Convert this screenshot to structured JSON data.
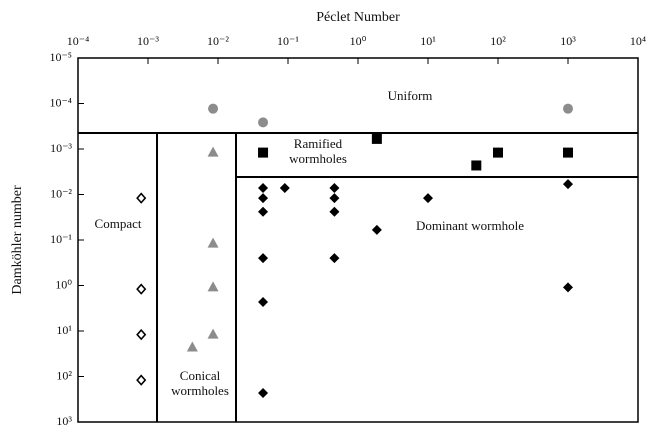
{
  "chart_data": {
    "type": "scatter",
    "xlabel": "Péclet Number",
    "ylabel": "Damköhler number",
    "xlog": true,
    "ylog": true,
    "y_inverted": true,
    "x_axis_position": "top",
    "xlim": [
      0.0001,
      10000
    ],
    "ylim": [
      1e-05,
      1000
    ],
    "xticks": [
      {
        "value": 0.0001,
        "label": "10⁻⁴"
      },
      {
        "value": 0.001,
        "label": "10⁻³"
      },
      {
        "value": 0.01,
        "label": "10⁻²"
      },
      {
        "value": 0.1,
        "label": "10⁻¹"
      },
      {
        "value": 1,
        "label": "10⁰"
      },
      {
        "value": 10,
        "label": "10¹"
      },
      {
        "value": 100,
        "label": "10²"
      },
      {
        "value": 1000,
        "label": "10³"
      },
      {
        "value": 10000,
        "label": "10⁴"
      }
    ],
    "yticks": [
      {
        "value": 1e-05,
        "label": "10⁻⁵"
      },
      {
        "value": 0.0001,
        "label": "10⁻⁴"
      },
      {
        "value": 0.001,
        "label": "10⁻³"
      },
      {
        "value": 0.01,
        "label": "10⁻²"
      },
      {
        "value": 0.1,
        "label": "10⁻¹"
      },
      {
        "value": 1,
        "label": "10⁰"
      },
      {
        "value": 10,
        "label": "10¹"
      },
      {
        "value": 100,
        "label": "10²"
      },
      {
        "value": 1000,
        "label": "10³"
      }
    ],
    "series": [
      {
        "name": "Uniform",
        "marker": "circle",
        "color": "#8c8c8c",
        "x": [
          0.0085,
          0.044,
          1000
        ],
        "values": [
          0.00013,
          0.00026,
          0.00013
        ]
      },
      {
        "name": "Ramified wormholes",
        "marker": "square",
        "color": "#000000",
        "x": [
          0.044,
          1.86,
          49,
          100,
          1000
        ],
        "values": [
          0.0012,
          0.0006,
          0.0023,
          0.0012,
          0.0012
        ]
      },
      {
        "name": "Dominant wormhole",
        "marker": "diamond",
        "color": "#000000",
        "x": [
          0.044,
          0.044,
          0.044,
          0.09,
          0.46,
          0.46,
          0.46,
          10,
          1.86,
          0.044,
          0.46,
          0.044,
          0.044,
          1000,
          1000
        ],
        "values": [
          0.0072,
          0.012,
          0.024,
          0.0072,
          0.0072,
          0.012,
          0.024,
          0.012,
          0.06,
          0.25,
          0.25,
          2.3,
          230,
          0.0059,
          1.1
        ]
      },
      {
        "name": "Conical wormholes",
        "marker": "triangle",
        "color": "#8c8c8c",
        "x": [
          0.0085,
          0.0085,
          0.0085,
          0.0085,
          0.0043
        ],
        "values": [
          0.0012,
          0.12,
          1.1,
          12,
          23
        ]
      },
      {
        "name": "Compact",
        "marker": "diamond-open",
        "color": "#000000",
        "x": [
          0.0008,
          0.0008,
          0.0008,
          0.0008
        ],
        "values": [
          0.012,
          1.2,
          12,
          120
        ]
      }
    ]
  }
}
